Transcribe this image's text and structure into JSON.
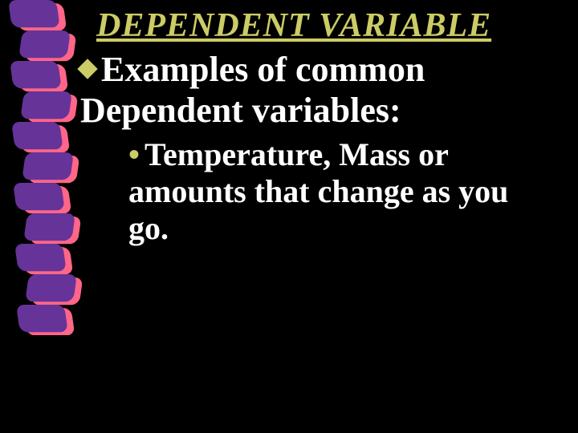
{
  "slide": {
    "title": "DEPENDENT VARIABLE",
    "title_color": "#cccc66",
    "title_fontsize": 42,
    "background_color": "#000000",
    "text_color": "#ffffff",
    "bullet1": {
      "text": "Examples of common Dependent variables:",
      "bullet_color": "#cccc66",
      "fontsize": 44
    },
    "bullet2": {
      "text": "Temperature, Mass or amounts that change as you go.",
      "bullet_color": "#cccc66",
      "fontsize": 40
    },
    "spiral": {
      "segments": 11,
      "segment_height": 38,
      "offsets": [
        10,
        28,
        12,
        30,
        14,
        32,
        16,
        34,
        18,
        36,
        20
      ],
      "color_a": "#663399",
      "color_b": "#ff6688",
      "twist_deg": 8
    }
  }
}
